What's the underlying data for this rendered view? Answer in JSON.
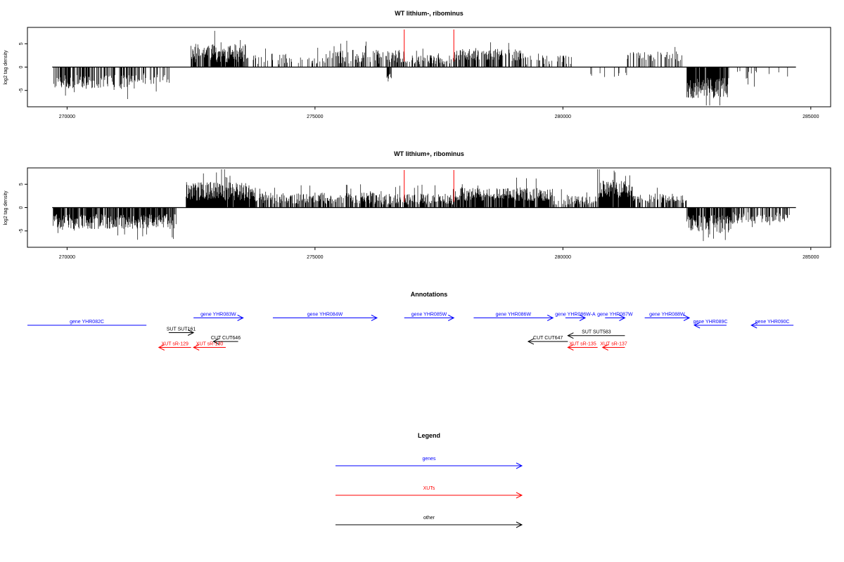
{
  "colors": {
    "gene": "#0000ff",
    "xut": "#ff0000",
    "other": "#000000",
    "marker": "#ff0000"
  },
  "chart_data": [
    {
      "type": "bar",
      "title": "WT lithium-, ribominus",
      "ylabel": "log2 tag density",
      "xlim": [
        269200,
        285400
      ],
      "ylim": [
        -8.5,
        8.5
      ],
      "baseline_range": [
        269700,
        284700
      ],
      "xticks": [
        270000,
        275000,
        280000,
        285000
      ],
      "yticks": [
        -5,
        0,
        5
      ],
      "markers": [
        276800,
        277800
      ],
      "segments": [
        {
          "from": 269720,
          "to": 271500,
          "height": -3.2,
          "spread": 1.5,
          "density": 0.55
        },
        {
          "from": 271500,
          "to": 272100,
          "height": -2.5,
          "spread": 1.2,
          "density": 0.25
        },
        {
          "from": 272500,
          "to": 273600,
          "height": 3.0,
          "spread": 2.0,
          "density": 0.85
        },
        {
          "from": 273600,
          "to": 275300,
          "height": 1.8,
          "spread": 1.2,
          "density": 0.25
        },
        {
          "from": 275300,
          "to": 276800,
          "height": 2.2,
          "spread": 1.5,
          "density": 0.45
        },
        {
          "from": 276450,
          "to": 276550,
          "height": -2.0,
          "spread": 0.6,
          "density": 0.7
        },
        {
          "from": 276800,
          "to": 277800,
          "height": 1.6,
          "spread": 1.0,
          "density": 0.5
        },
        {
          "from": 277800,
          "to": 279200,
          "height": 2.6,
          "spread": 1.3,
          "density": 0.55
        },
        {
          "from": 279200,
          "to": 280200,
          "height": 1.5,
          "spread": 1.0,
          "density": 0.25
        },
        {
          "from": 280400,
          "to": 281300,
          "height": -1.5,
          "spread": 0.8,
          "density": 0.12
        },
        {
          "from": 281300,
          "to": 282400,
          "height": 2.2,
          "spread": 1.2,
          "density": 0.35
        },
        {
          "from": 282500,
          "to": 283350,
          "height": -4.5,
          "spread": 2.2,
          "density": 0.9
        },
        {
          "from": 283400,
          "to": 284600,
          "height": -1.8,
          "spread": 1.0,
          "density": 0.12
        }
      ]
    },
    {
      "type": "bar",
      "title": "WT lithium+, ribominus",
      "ylabel": "log2 tag density",
      "xlim": [
        269200,
        285400
      ],
      "ylim": [
        -8.5,
        8.5
      ],
      "baseline_range": [
        269700,
        284700
      ],
      "xticks": [
        270000,
        275000,
        280000,
        285000
      ],
      "yticks": [
        -5,
        0,
        5
      ],
      "markers": [
        276800,
        277800
      ],
      "segments": [
        {
          "from": 269720,
          "to": 272200,
          "height": -3.0,
          "spread": 1.6,
          "density": 0.85
        },
        {
          "from": 272400,
          "to": 273800,
          "height": 3.5,
          "spread": 2.0,
          "density": 0.95
        },
        {
          "from": 273800,
          "to": 276300,
          "height": 2.0,
          "spread": 1.2,
          "density": 0.6
        },
        {
          "from": 276300,
          "to": 276800,
          "height": 1.8,
          "spread": 1.2,
          "density": 0.6
        },
        {
          "from": 276800,
          "to": 277800,
          "height": 1.8,
          "spread": 1.2,
          "density": 0.7
        },
        {
          "from": 277800,
          "to": 279800,
          "height": 2.8,
          "spread": 1.4,
          "density": 0.9
        },
        {
          "from": 279800,
          "to": 280700,
          "height": 1.5,
          "spread": 1.0,
          "density": 0.5
        },
        {
          "from": 280700,
          "to": 281400,
          "height": 4.0,
          "spread": 2.0,
          "density": 0.9
        },
        {
          "from": 281400,
          "to": 282500,
          "height": 2.0,
          "spread": 1.0,
          "density": 0.5
        },
        {
          "from": 282500,
          "to": 283400,
          "height": -3.5,
          "spread": 2.0,
          "density": 0.85
        },
        {
          "from": 283400,
          "to": 284600,
          "height": -2.2,
          "spread": 1.2,
          "density": 0.5
        }
      ]
    }
  ],
  "annotations": {
    "title": "Annotations",
    "items": [
      {
        "label": "gene YHR082C",
        "type": "gene",
        "from": 269200,
        "to": 271600,
        "row": 0,
        "dir": "none"
      },
      {
        "label": "gene YHR083W",
        "type": "gene",
        "from": 272550,
        "to": 273550,
        "row": -1,
        "dir": "right"
      },
      {
        "label": "gene YHR084W",
        "type": "gene",
        "from": 274150,
        "to": 276250,
        "row": -1,
        "dir": "right"
      },
      {
        "label": "gene YHR085W",
        "type": "gene",
        "from": 276800,
        "to": 277800,
        "row": -1,
        "dir": "right"
      },
      {
        "label": "gene YHR086W",
        "type": "gene",
        "from": 278200,
        "to": 279800,
        "row": -1,
        "dir": "right"
      },
      {
        "label": "gene YHR086W-A",
        "type": "gene",
        "from": 280050,
        "to": 280450,
        "row": -1,
        "dir": "right"
      },
      {
        "label": "gene YHR087W",
        "type": "gene",
        "from": 280850,
        "to": 281250,
        "row": -1,
        "dir": "right"
      },
      {
        "label": "gene YHR088W",
        "type": "gene",
        "from": 281650,
        "to": 282550,
        "row": -1,
        "dir": "right"
      },
      {
        "label": "gene YHR089C",
        "type": "gene",
        "from": 282650,
        "to": 283300,
        "row": 0,
        "dir": "left"
      },
      {
        "label": "gene YHR090C",
        "type": "gene",
        "from": 283800,
        "to": 284650,
        "row": 0,
        "dir": "left"
      },
      {
        "label": "SUT SUT161",
        "type": "other",
        "from": 272050,
        "to": 272550,
        "row": 1,
        "dir": "right"
      },
      {
        "label": "SUT SUT583",
        "type": "other",
        "from": 280100,
        "to": 281250,
        "row": 1.4,
        "dir": "left"
      },
      {
        "label": "CUT CUT646",
        "type": "other",
        "from": 272950,
        "to": 273450,
        "row": 2.2,
        "dir": "left"
      },
      {
        "label": "CUT CUT647",
        "type": "other",
        "from": 279300,
        "to": 280100,
        "row": 2.2,
        "dir": "left"
      },
      {
        "label": "XUT sR-129",
        "type": "xut",
        "from": 271850,
        "to": 272500,
        "row": 3,
        "dir": "left"
      },
      {
        "label": "XUT sR-130",
        "type": "xut",
        "from": 272550,
        "to": 273200,
        "row": 3,
        "dir": "left"
      },
      {
        "label": "XUT sR-135",
        "type": "xut",
        "from": 280100,
        "to": 280700,
        "row": 3,
        "dir": "left"
      },
      {
        "label": "XUT sR-137",
        "type": "xut",
        "from": 280800,
        "to": 281250,
        "row": 3,
        "dir": "left"
      }
    ]
  },
  "legend": {
    "title": "Legend",
    "items": [
      {
        "label": "genes",
        "type": "gene"
      },
      {
        "label": "XUTs",
        "type": "xut"
      },
      {
        "label": "other",
        "type": "other"
      }
    ]
  }
}
